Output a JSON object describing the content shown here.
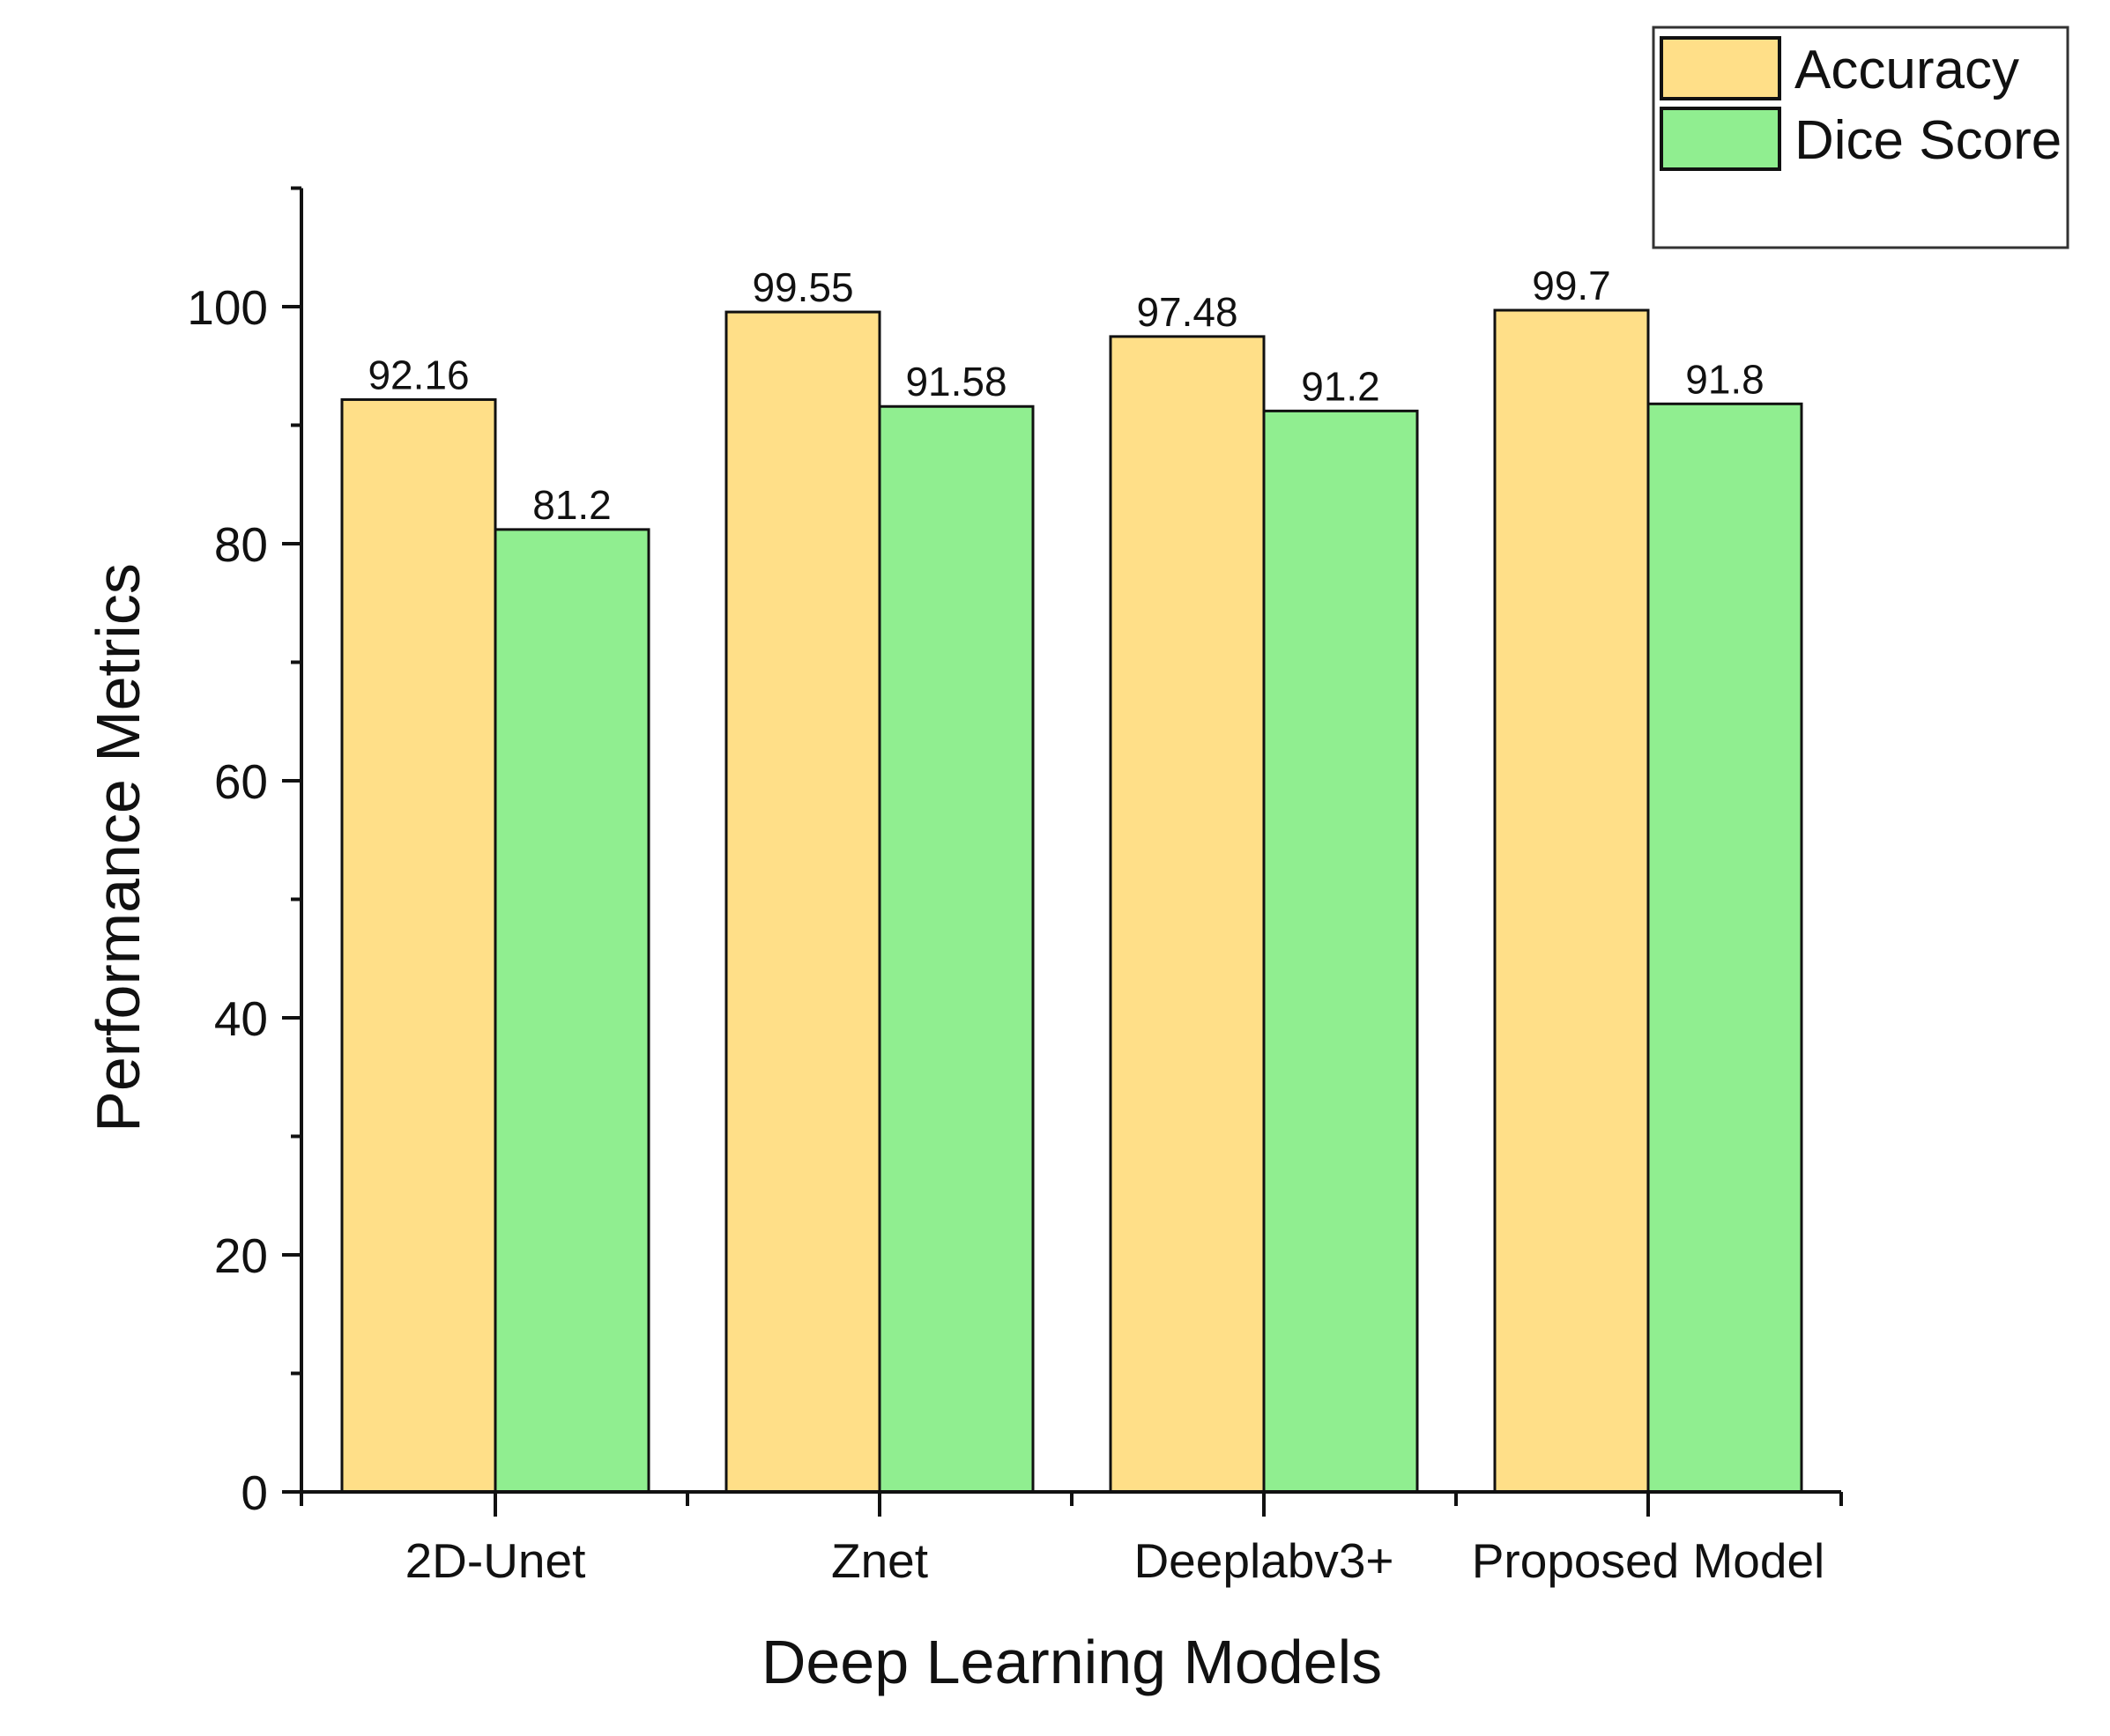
{
  "chart_data": {
    "type": "bar",
    "title": "",
    "xlabel": "Deep Learning Models",
    "ylabel": "Performance Metrics",
    "categories": [
      "2D-Unet",
      "Znet",
      "Deeplabv3+",
      "Proposed Model"
    ],
    "series": [
      {
        "name": "Accuracy",
        "color": "#FFDF88",
        "values": [
          92.16,
          99.55,
          97.48,
          99.7
        ],
        "labels": [
          "92.16",
          "99.55",
          "97.48",
          "99.7"
        ]
      },
      {
        "name": "Dice Score",
        "color": "#90EE90",
        "values": [
          81.2,
          91.58,
          91.2,
          91.8
        ],
        "labels": [
          "81.2",
          "91.58",
          "91.2",
          "91.8"
        ]
      }
    ],
    "ylim": [
      0,
      110
    ],
    "yticks": [
      0,
      20,
      40,
      60,
      80,
      100
    ],
    "ytick_labels": [
      "0",
      "20",
      "40",
      "60",
      "80",
      "100"
    ],
    "grid": false,
    "legend_position": "top-right"
  }
}
